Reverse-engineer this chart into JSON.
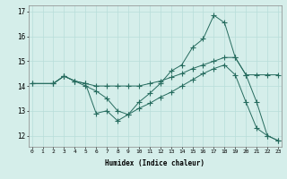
{
  "xlabel": "Humidex (Indice chaleur)",
  "line1": {
    "x": [
      0,
      2,
      3,
      4,
      5,
      6,
      7,
      8,
      9,
      10,
      11,
      12,
      13,
      14,
      15,
      16,
      17,
      18,
      19,
      20,
      21,
      22,
      23
    ],
    "y": [
      14.1,
      14.1,
      14.4,
      14.2,
      14.0,
      13.8,
      13.5,
      13.0,
      12.85,
      13.1,
      13.3,
      13.55,
      13.75,
      14.0,
      14.25,
      14.5,
      14.7,
      14.85,
      14.45,
      13.35,
      12.3,
      12.0,
      11.8
    ]
  },
  "line2": {
    "x": [
      0,
      2,
      3,
      4,
      5,
      6,
      7,
      8,
      9,
      10,
      11,
      12,
      13,
      14,
      15,
      16,
      17,
      18,
      19,
      20,
      21,
      22,
      23
    ],
    "y": [
      14.1,
      14.1,
      14.4,
      14.2,
      14.1,
      14.0,
      14.0,
      14.0,
      14.0,
      14.0,
      14.1,
      14.2,
      14.35,
      14.5,
      14.7,
      14.85,
      15.0,
      15.15,
      15.15,
      14.45,
      14.45,
      14.45,
      14.45
    ]
  },
  "line3": {
    "x": [
      2,
      3,
      4,
      5,
      6,
      7,
      8,
      9,
      10,
      11,
      12,
      13,
      14,
      15,
      16,
      17,
      18,
      19,
      20,
      21,
      22,
      23
    ],
    "y": [
      14.1,
      14.4,
      14.2,
      14.1,
      12.9,
      13.0,
      12.6,
      12.85,
      13.35,
      13.7,
      14.1,
      14.6,
      14.85,
      15.55,
      15.9,
      16.85,
      16.55,
      15.15,
      14.45,
      13.35,
      12.0,
      11.8
    ]
  },
  "xlim": [
    -0.3,
    23.3
  ],
  "ylim": [
    11.55,
    17.25
  ],
  "yticks": [
    12,
    13,
    14,
    15,
    16,
    17
  ],
  "xticks": [
    0,
    1,
    2,
    3,
    4,
    5,
    6,
    7,
    8,
    9,
    10,
    11,
    12,
    13,
    14,
    15,
    16,
    17,
    18,
    19,
    20,
    21,
    22,
    23
  ],
  "bg_color": "#d5eeea",
  "grid_color": "#b8ddd9",
  "line_color": "#256b5e",
  "marker_size": 2.2
}
